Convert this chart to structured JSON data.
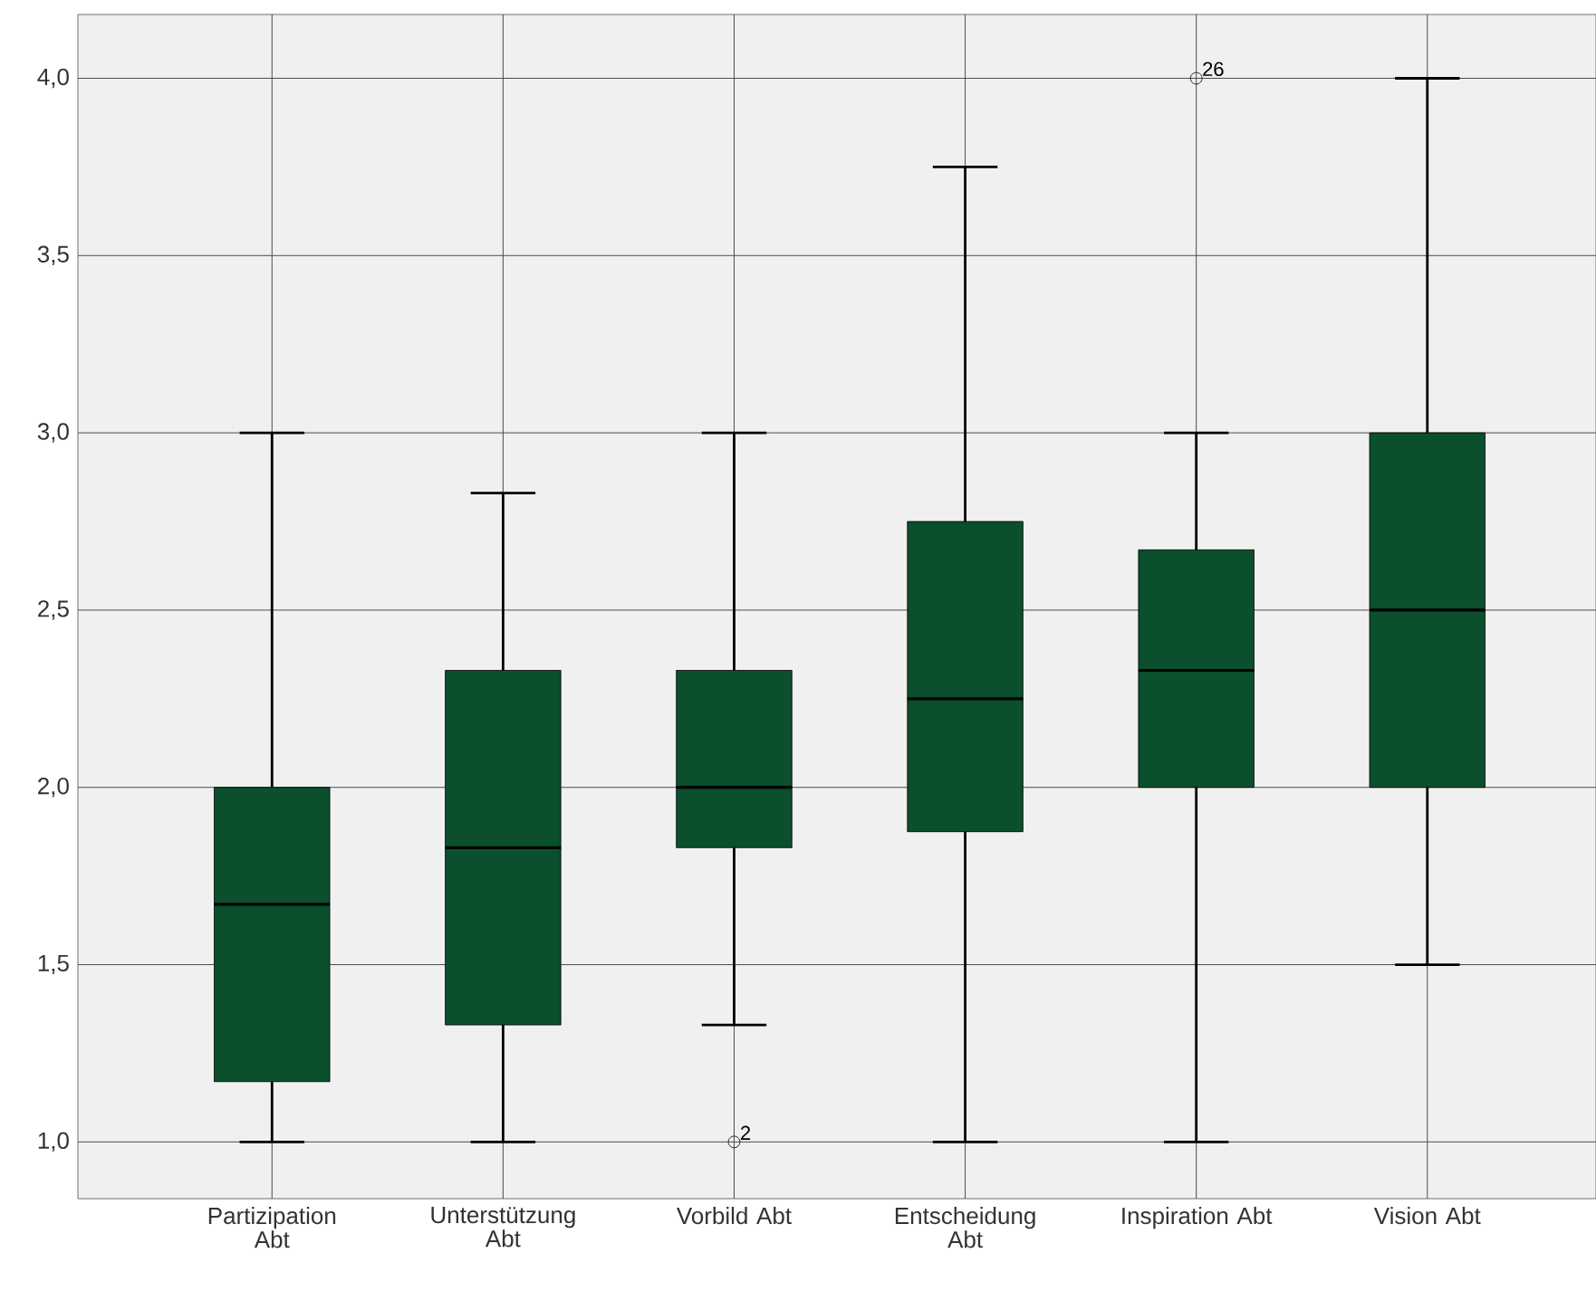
{
  "chart_data": {
    "type": "box",
    "color": "#0b4f2c",
    "categories": [
      "Partizipation Abt",
      "Unterstützung Abt",
      "Vorbild Abt",
      "Entscheidung Abt",
      "Inspiration Abt",
      "Vision Abt"
    ],
    "boxes": [
      {
        "low": 1.0,
        "q1": 1.17,
        "median": 1.67,
        "q3": 2.0,
        "high": 3.0
      },
      {
        "low": 1.0,
        "q1": 1.33,
        "median": 1.83,
        "q3": 2.33,
        "high": 2.83
      },
      {
        "low": 1.33,
        "q1": 1.83,
        "median": 2.0,
        "q3": 2.33,
        "high": 3.0,
        "outliers": [
          1.0
        ]
      },
      {
        "low": 1.0,
        "q1": 1.875,
        "median": 2.25,
        "q3": 2.75,
        "high": 3.75
      },
      {
        "low": 1.0,
        "q1": 2.0,
        "median": 2.33,
        "q3": 2.67,
        "high": 3.0,
        "outliers": [
          4.0
        ]
      },
      {
        "low": 1.5,
        "q1": 2.0,
        "median": 2.5,
        "q3": 3.0,
        "high": 4.0
      }
    ],
    "ylim": [
      0.84,
      4.18
    ],
    "yticks": [
      {
        "value": 1.0,
        "label": "1,0"
      },
      {
        "value": 1.5,
        "label": "1,5"
      },
      {
        "value": 2.0,
        "label": "2,0"
      },
      {
        "value": 2.5,
        "label": "2,5"
      },
      {
        "value": 3.0,
        "label": "3,0"
      },
      {
        "value": 3.5,
        "label": "3,5"
      },
      {
        "value": 4.0,
        "label": "4,0"
      }
    ],
    "grid": true,
    "annotations": [
      "2",
      "26"
    ]
  }
}
